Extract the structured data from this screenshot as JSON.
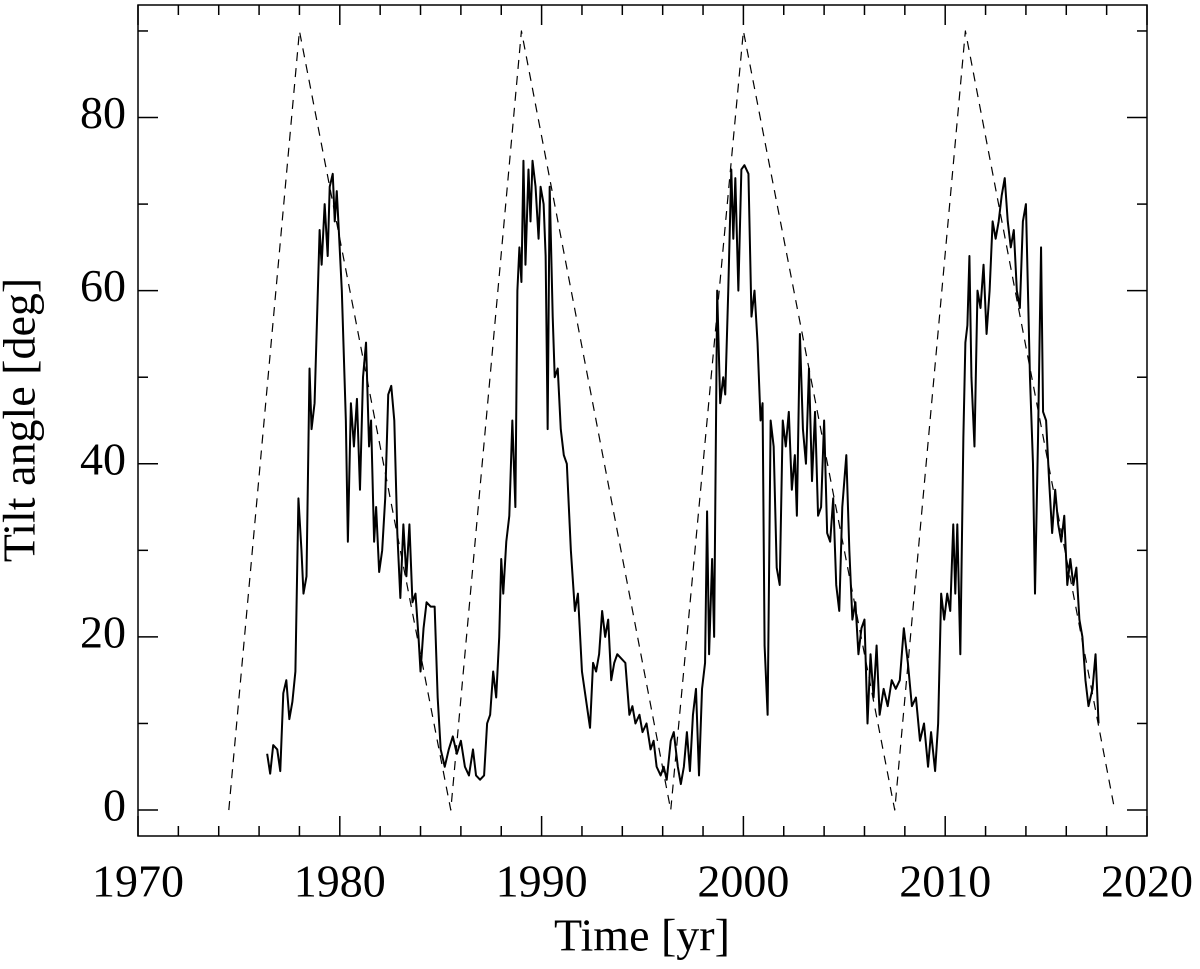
{
  "chart_data": {
    "type": "line",
    "xlabel": "Time [yr]",
    "ylabel": "Tilt angle [deg]",
    "xlim": [
      1970,
      2020
    ],
    "xticks": [
      1970,
      1980,
      1990,
      2000,
      2010,
      2020
    ],
    "xminorticks": [
      1972,
      1974,
      1976,
      1978,
      1982,
      1984,
      1986,
      1988,
      1992,
      1994,
      1996,
      1998,
      2002,
      2004,
      2006,
      2008,
      2012,
      2014,
      2016,
      2018
    ],
    "ylim": [
      -3,
      93
    ],
    "yticks": [
      0,
      20,
      40,
      60,
      80
    ],
    "yminorticks": [
      10,
      30,
      50,
      70,
      90
    ],
    "series": [
      {
        "color": "#000000",
        "line_style": "solid",
        "x": [
          1976.4,
          1976.55,
          1976.7,
          1976.9,
          1977.05,
          1977.2,
          1977.35,
          1977.5,
          1977.65,
          1977.8,
          1977.95,
          1978.1,
          1978.2,
          1978.35,
          1978.5,
          1978.6,
          1978.75,
          1978.9,
          1979.0,
          1979.1,
          1979.25,
          1979.4,
          1979.5,
          1979.65,
          1979.75,
          1979.85,
          1979.95,
          1980.1,
          1980.3,
          1980.4,
          1980.55,
          1980.7,
          1980.85,
          1981.0,
          1981.15,
          1981.3,
          1981.45,
          1981.55,
          1981.7,
          1981.8,
          1981.95,
          1982.1,
          1982.25,
          1982.4,
          1982.55,
          1982.7,
          1982.85,
          1983.0,
          1983.15,
          1983.3,
          1983.45,
          1983.6,
          1983.75,
          1983.9,
          1984.0,
          1984.15,
          1984.3,
          1984.5,
          1984.7,
          1984.85,
          1985.0,
          1985.2,
          1985.4,
          1985.6,
          1985.8,
          1986.0,
          1986.2,
          1986.4,
          1986.6,
          1986.75,
          1986.95,
          1987.15,
          1987.3,
          1987.45,
          1987.6,
          1987.75,
          1987.9,
          1988.0,
          1988.1,
          1988.25,
          1988.4,
          1988.55,
          1988.7,
          1988.8,
          1988.9,
          1989.0,
          1989.1,
          1989.2,
          1989.35,
          1989.45,
          1989.55,
          1989.7,
          1989.85,
          1989.95,
          1990.1,
          1990.2,
          1990.3,
          1990.4,
          1990.55,
          1990.65,
          1990.8,
          1990.95,
          1991.1,
          1991.25,
          1991.45,
          1991.65,
          1991.8,
          1992.0,
          1992.4,
          1992.55,
          1992.7,
          1992.85,
          1993.0,
          1993.15,
          1993.3,
          1993.45,
          1993.6,
          1993.75,
          1993.95,
          1994.15,
          1994.35,
          1994.5,
          1994.65,
          1994.85,
          1995.0,
          1995.2,
          1995.4,
          1995.55,
          1995.7,
          1995.9,
          1996.05,
          1996.2,
          1996.4,
          1996.55,
          1996.75,
          1996.9,
          1997.05,
          1997.2,
          1997.35,
          1997.5,
          1997.65,
          1997.8,
          1997.95,
          1998.1,
          1998.2,
          1998.3,
          1998.45,
          1998.55,
          1998.7,
          1998.85,
          1999.0,
          1999.1,
          1999.25,
          1999.4,
          1999.5,
          1999.6,
          1999.75,
          1999.9,
          2000.05,
          2000.25,
          2000.4,
          2000.55,
          2000.7,
          2000.85,
          2000.95,
          2001.05,
          2001.2,
          2001.35,
          2001.5,
          2001.65,
          2001.8,
          2001.95,
          2002.1,
          2002.25,
          2002.4,
          2002.55,
          2002.65,
          2002.8,
          2002.95,
          2003.1,
          2003.25,
          2003.4,
          2003.55,
          2003.7,
          2003.85,
          2004.0,
          2004.15,
          2004.3,
          2004.45,
          2004.6,
          2004.75,
          2004.9,
          2005.1,
          2005.25,
          2005.4,
          2005.55,
          2005.7,
          2005.85,
          2006.0,
          2006.15,
          2006.3,
          2006.45,
          2006.6,
          2006.75,
          2006.95,
          2007.15,
          2007.35,
          2007.55,
          2007.75,
          2007.95,
          2008.15,
          2008.35,
          2008.55,
          2008.75,
          2008.95,
          2009.15,
          2009.3,
          2009.5,
          2009.65,
          2009.8,
          2009.95,
          2010.1,
          2010.25,
          2010.4,
          2010.5,
          2010.6,
          2010.75,
          2010.9,
          2011.0,
          2011.1,
          2011.2,
          2011.3,
          2011.45,
          2011.6,
          2011.75,
          2011.9,
          2012.05,
          2012.2,
          2012.35,
          2012.5,
          2012.65,
          2012.8,
          2012.95,
          2013.1,
          2013.25,
          2013.4,
          2013.55,
          2013.7,
          2013.85,
          2014.0,
          2014.1,
          2014.2,
          2014.35,
          2014.45,
          2014.6,
          2014.75,
          2014.85,
          2015.0,
          2015.15,
          2015.3,
          2015.45,
          2015.6,
          2015.75,
          2015.9,
          2016.05,
          2016.2,
          2016.35,
          2016.5,
          2016.65,
          2016.8,
          2016.95,
          2017.1,
          2017.3,
          2017.45,
          2017.6
        ],
        "values": [
          6.5,
          4.2,
          7.5,
          7,
          4.5,
          13.5,
          15,
          10.5,
          12.5,
          16,
          36,
          30,
          25,
          27,
          51,
          44,
          47,
          59,
          67,
          63,
          70,
          64,
          72,
          73.5,
          68,
          71.5,
          67,
          60,
          45,
          31,
          47,
          42,
          47.5,
          37,
          50,
          54,
          42,
          45,
          31,
          35,
          27.5,
          30,
          36,
          48,
          49,
          45,
          32,
          24.5,
          33,
          27,
          33,
          24,
          25,
          20,
          16,
          21,
          24,
          23.5,
          23.5,
          13,
          7,
          5,
          7,
          8.5,
          6.5,
          8,
          5,
          4,
          7,
          4,
          3.5,
          4,
          10,
          11,
          16,
          13,
          20,
          29,
          25,
          31,
          34,
          45,
          35,
          60,
          65,
          61,
          75,
          63,
          74,
          68,
          75,
          72,
          66,
          72,
          70,
          64,
          44,
          72,
          57,
          50,
          51,
          44,
          41,
          40,
          30,
          23,
          25,
          16,
          9.5,
          17,
          16,
          18,
          23,
          20,
          22,
          15,
          17,
          18,
          17.5,
          17,
          11,
          12,
          10,
          11,
          9,
          10,
          7,
          8,
          5,
          4,
          5,
          3.5,
          8,
          9,
          5,
          3,
          5,
          9,
          4.5,
          11,
          14,
          4,
          14,
          17,
          34.5,
          18,
          29,
          20,
          60,
          47,
          50,
          48,
          60,
          74,
          66,
          73,
          60,
          74,
          74.5,
          73.5,
          57,
          60,
          54,
          45,
          47,
          19,
          11,
          45,
          42,
          28,
          26,
          45,
          42,
          46,
          37,
          41,
          34,
          55,
          44,
          40,
          51,
          38,
          46,
          34,
          35,
          45,
          32,
          31,
          36,
          26,
          23,
          35,
          41,
          30,
          22,
          24,
          18,
          21,
          22,
          10,
          18,
          13,
          19,
          11,
          14,
          12,
          15,
          14,
          15,
          21,
          17,
          12,
          13,
          8,
          10,
          5,
          9,
          4.5,
          10,
          25,
          22,
          25,
          23,
          33,
          25,
          33,
          18,
          43,
          54,
          56,
          64,
          50,
          42,
          60,
          58,
          63,
          55,
          60,
          68,
          66,
          68,
          71,
          73,
          68,
          65,
          67,
          60,
          58,
          68,
          70,
          60,
          50,
          40,
          25,
          43,
          65,
          46,
          45,
          38,
          32,
          37,
          33,
          31,
          34,
          26,
          29,
          26,
          28,
          22,
          20,
          15,
          12,
          14,
          18,
          10
        ]
      },
      {
        "color": "#000000",
        "line_style": "dashed",
        "x": [
          1974.5,
          1978.0,
          1985.5,
          1989.0,
          1996.4,
          2000.0,
          2007.5,
          2011.0,
          2018.4
        ],
        "values": [
          0,
          90,
          0,
          90,
          0,
          90,
          0,
          90,
          0
        ]
      }
    ]
  }
}
